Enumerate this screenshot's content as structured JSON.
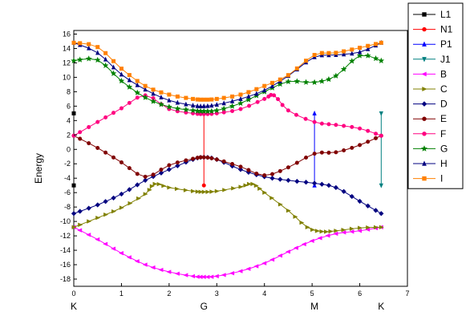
{
  "chart_data": {
    "type": "line",
    "title": "",
    "xlabel": "",
    "ylabel": "Energy",
    "xlim": [
      0,
      7
    ],
    "ylim": [
      -19,
      16.5
    ],
    "xticks": [
      0,
      1,
      2,
      3,
      4,
      5,
      6,
      7
    ],
    "yticks": [
      -18,
      -16,
      -14,
      -12,
      -10,
      -8,
      -6,
      -4,
      -2,
      0,
      2,
      4,
      6,
      8,
      10,
      12,
      14,
      16
    ],
    "x_point_labels": [
      {
        "x": 0,
        "label": "K"
      },
      {
        "x": 2.73,
        "label": "G"
      },
      {
        "x": 5.05,
        "label": "M"
      },
      {
        "x": 6.45,
        "label": "K"
      }
    ],
    "grid": false,
    "legend": {
      "placement": "right"
    },
    "series": [
      {
        "name": "L1",
        "color": "#000000",
        "marker": "square",
        "points": [
          [
            0,
            5
          ],
          [
            0,
            -5
          ]
        ]
      },
      {
        "name": "N1",
        "color": "#ff0000",
        "marker": "circle",
        "points": [
          [
            2.73,
            5
          ],
          [
            2.73,
            -5
          ]
        ]
      },
      {
        "name": "P1",
        "color": "#0000ff",
        "marker": "triangle-up",
        "points": [
          [
            5.05,
            5
          ],
          [
            5.05,
            -5
          ]
        ]
      },
      {
        "name": "J1",
        "color": "#008080",
        "marker": "triangle-down",
        "points": [
          [
            6.45,
            5
          ],
          [
            6.45,
            -5
          ]
        ]
      },
      {
        "name": "B",
        "color": "#ff00ff",
        "marker": "triangle-left",
        "points": [
          [
            0,
            -10.8
          ],
          [
            0.5,
            -12.5
          ],
          [
            1.0,
            -14.4
          ],
          [
            1.5,
            -16.0
          ],
          [
            2.0,
            -17.0
          ],
          [
            2.5,
            -17.6
          ],
          [
            2.73,
            -17.7
          ],
          [
            3.0,
            -17.6
          ],
          [
            3.5,
            -16.9
          ],
          [
            4.0,
            -15.8
          ],
          [
            4.5,
            -14.2
          ],
          [
            5.0,
            -12.7
          ],
          [
            5.5,
            -11.7
          ],
          [
            6.0,
            -11.3
          ],
          [
            6.45,
            -10.8
          ]
        ]
      },
      {
        "name": "C",
        "color": "#808000",
        "marker": "triangle-right",
        "points": [
          [
            0,
            -10.8
          ],
          [
            0.5,
            -9.5
          ],
          [
            1.0,
            -8.1
          ],
          [
            1.5,
            -6.2
          ],
          [
            1.7,
            -4.8
          ],
          [
            2.0,
            -5.3
          ],
          [
            2.5,
            -5.8
          ],
          [
            2.73,
            -5.9
          ],
          [
            3.0,
            -5.8
          ],
          [
            3.5,
            -5.2
          ],
          [
            3.75,
            -4.8
          ],
          [
            4.0,
            -6.0
          ],
          [
            4.5,
            -8.5
          ],
          [
            4.9,
            -10.8
          ],
          [
            5.2,
            -11.4
          ],
          [
            5.5,
            -11.3
          ],
          [
            6.0,
            -10.9
          ],
          [
            6.45,
            -10.8
          ]
        ]
      },
      {
        "name": "D",
        "color": "#000080",
        "marker": "diamond",
        "points": [
          [
            0,
            -8.9
          ],
          [
            0.5,
            -7.7
          ],
          [
            1.0,
            -6.2
          ],
          [
            1.5,
            -4.3
          ],
          [
            2.0,
            -2.8
          ],
          [
            2.5,
            -1.4
          ],
          [
            2.73,
            -1.1
          ],
          [
            3.0,
            -1.4
          ],
          [
            3.5,
            -2.8
          ],
          [
            4.0,
            -3.8
          ],
          [
            4.5,
            -4.3
          ],
          [
            5.05,
            -4.7
          ],
          [
            5.5,
            -5.3
          ],
          [
            6.0,
            -7.2
          ],
          [
            6.45,
            -8.9
          ]
        ]
      },
      {
        "name": "E",
        "color": "#800000",
        "marker": "circle",
        "points": [
          [
            0,
            1.9
          ],
          [
            0.5,
            0.2
          ],
          [
            1.0,
            -1.8
          ],
          [
            1.5,
            -3.8
          ],
          [
            2.0,
            -2.2
          ],
          [
            2.5,
            -1.3
          ],
          [
            2.73,
            -1.1
          ],
          [
            3.0,
            -1.4
          ],
          [
            3.5,
            -2.4
          ],
          [
            4.0,
            -3.6
          ],
          [
            4.5,
            -2.5
          ],
          [
            5.05,
            -0.6
          ],
          [
            5.5,
            -0.4
          ],
          [
            6.0,
            0.6
          ],
          [
            6.45,
            1.9
          ]
        ]
      },
      {
        "name": "F",
        "color": "#ff0080",
        "marker": "circle",
        "points": [
          [
            0,
            1.9
          ],
          [
            0.5,
            3.8
          ],
          [
            1.0,
            5.7
          ],
          [
            1.5,
            7.5
          ],
          [
            2.0,
            5.6
          ],
          [
            2.5,
            5.0
          ],
          [
            2.73,
            4.9
          ],
          [
            3.0,
            5.0
          ],
          [
            3.5,
            5.6
          ],
          [
            4.0,
            7.0
          ],
          [
            4.2,
            7.5
          ],
          [
            4.5,
            5.4
          ],
          [
            5.05,
            3.8
          ],
          [
            5.5,
            3.4
          ],
          [
            6.0,
            2.9
          ],
          [
            6.45,
            1.9
          ]
        ]
      },
      {
        "name": "G",
        "color": "#008000",
        "marker": "star",
        "points": [
          [
            0,
            12.3
          ],
          [
            0.5,
            12.4
          ],
          [
            1.0,
            9.5
          ],
          [
            1.5,
            7.2
          ],
          [
            2.0,
            5.9
          ],
          [
            2.5,
            5.4
          ],
          [
            2.73,
            5.3
          ],
          [
            3.0,
            5.4
          ],
          [
            3.5,
            6.4
          ],
          [
            4.0,
            8.0
          ],
          [
            4.5,
            9.4
          ],
          [
            5.05,
            9.3
          ],
          [
            5.5,
            10.2
          ],
          [
            6.0,
            13.0
          ],
          [
            6.45,
            12.3
          ]
        ]
      },
      {
        "name": "H",
        "color": "#000080",
        "marker": "triangle-up",
        "points": [
          [
            0,
            14.8
          ],
          [
            0.5,
            13.4
          ],
          [
            1.0,
            10.4
          ],
          [
            1.5,
            8.3
          ],
          [
            2.0,
            6.8
          ],
          [
            2.5,
            6.1
          ],
          [
            2.73,
            6.0
          ],
          [
            3.0,
            6.2
          ],
          [
            3.5,
            7.0
          ],
          [
            4.0,
            8.2
          ],
          [
            4.5,
            10.2
          ],
          [
            5.05,
            12.8
          ],
          [
            5.5,
            13.1
          ],
          [
            6.0,
            13.5
          ],
          [
            6.45,
            14.8
          ]
        ]
      },
      {
        "name": "I",
        "color": "#ff8000",
        "marker": "square",
        "points": [
          [
            0,
            14.8
          ],
          [
            0.5,
            14.2
          ],
          [
            1.0,
            11.2
          ],
          [
            1.5,
            8.8
          ],
          [
            2.0,
            7.6
          ],
          [
            2.5,
            7.0
          ],
          [
            2.73,
            6.9
          ],
          [
            3.0,
            7.0
          ],
          [
            3.5,
            7.6
          ],
          [
            4.0,
            8.8
          ],
          [
            4.5,
            10.3
          ],
          [
            5.05,
            13.1
          ],
          [
            5.5,
            13.4
          ],
          [
            6.0,
            14.1
          ],
          [
            6.45,
            14.8
          ]
        ]
      }
    ]
  }
}
